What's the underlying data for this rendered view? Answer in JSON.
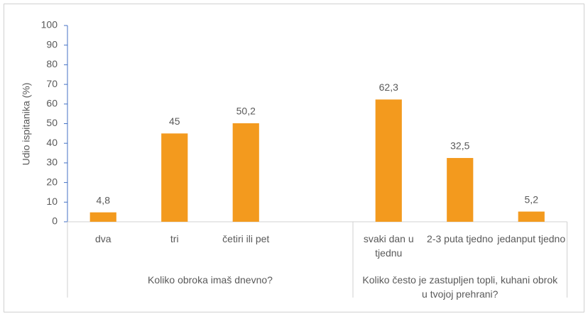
{
  "chart_data": {
    "type": "bar",
    "y_axis_label": "Udio ispitanika (%)",
    "categories": [
      "dva",
      "tri",
      "četiri ili pet",
      null,
      "svaki dan u tjednu",
      "2-3 puta tjedno",
      "jedanput tjedno"
    ],
    "values": [
      4.8,
      45,
      50.2,
      null,
      62.3,
      32.5,
      5.2
    ],
    "value_labels": [
      "4,8",
      "45",
      "50,2",
      null,
      "62,3",
      "32,5",
      "5,2"
    ],
    "groups": [
      "Koliko obroka imaš dnevno?",
      "Koliko često je zastupljen topli, kuhani obrok u tvojoj prehrani?"
    ],
    "color": "#f39a1e",
    "ylim": [
      0,
      100
    ],
    "yticks": [
      0,
      10,
      20,
      30,
      40,
      50,
      60,
      70,
      80,
      90,
      100
    ],
    "grid": false
  }
}
